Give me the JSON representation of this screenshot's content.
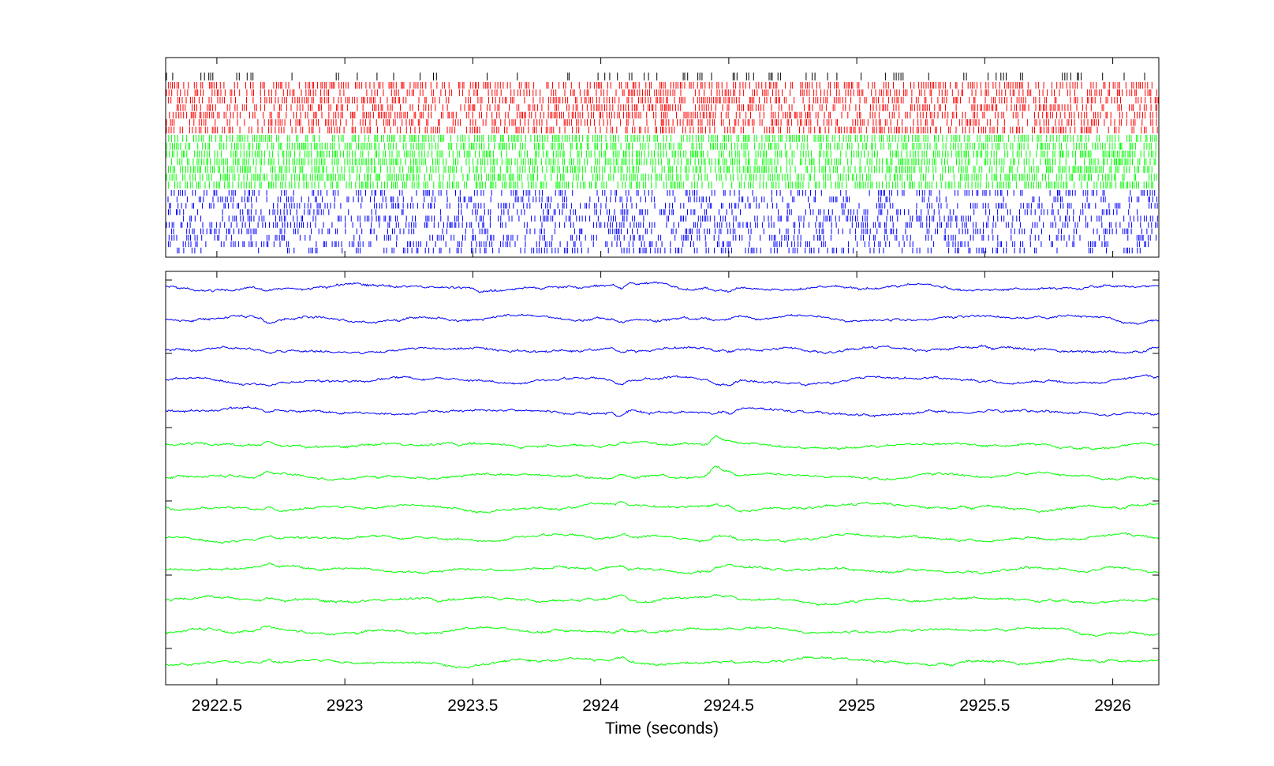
{
  "chart_data": [
    {
      "type": "raster",
      "xlim": [
        2922.3,
        2926.18
      ],
      "groups": [
        {
          "color": "#000000",
          "rows": 1,
          "density": 0.38
        },
        {
          "color": "#ff0000",
          "rows": 7,
          "density": 0.55
        },
        {
          "color": "#00ff00",
          "rows": 7,
          "density": 0.65
        },
        {
          "color": "#0000ff",
          "rows": 10,
          "density": 0.45
        }
      ]
    },
    {
      "type": "line",
      "xlim": [
        2922.3,
        2926.18
      ],
      "xticks": [
        2922.5,
        2923,
        2923.5,
        2924,
        2924.5,
        2925,
        2925.5,
        2926
      ],
      "xticklabels": [
        "2922.5",
        "2923",
        "2923.5",
        "2924",
        "2924.5",
        "2925",
        "2925.5",
        "2926"
      ],
      "xlabel": "Time (seconds)",
      "series": [
        {
          "color": "#0000ff",
          "count": 5
        },
        {
          "color": "#00ff00",
          "count": 8
        }
      ]
    }
  ]
}
